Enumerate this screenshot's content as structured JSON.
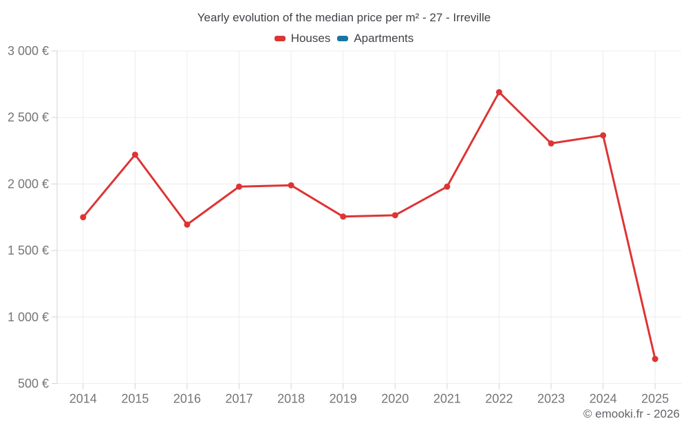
{
  "title": "Yearly evolution of the median price per m² - 27 - Irreville",
  "legend": {
    "items": [
      {
        "label": "Houses"
      },
      {
        "label": "Apartments"
      }
    ]
  },
  "footer": "© emooki.fr - 2026",
  "colors": {
    "grid": "#ececec",
    "axis": "#d2d2d2",
    "axis_text": "#757575",
    "title_text": "#3f4246",
    "footer_text": "#5f6368"
  },
  "chart_data": {
    "type": "line",
    "title": "Yearly evolution of the median price per m² - 27 - Irreville",
    "x": [
      "2014",
      "2015",
      "2016",
      "2017",
      "2018",
      "2019",
      "2020",
      "2021",
      "2022",
      "2023",
      "2024",
      "2025"
    ],
    "series": [
      {
        "name": "Houses",
        "color": "#dd3434",
        "values": [
          1750,
          2220,
          1695,
          1980,
          1990,
          1755,
          1765,
          1980,
          2690,
          2305,
          2365,
          685
        ]
      },
      {
        "name": "Apartments",
        "color": "#1a74a4",
        "values": []
      }
    ],
    "ylim": [
      500,
      3000
    ],
    "yticks": [
      {
        "value": 500,
        "label": "500 €"
      },
      {
        "value": 1000,
        "label": "1 000 €"
      },
      {
        "value": 1500,
        "label": "1 500 €"
      },
      {
        "value": 2000,
        "label": "2 000 €"
      },
      {
        "value": 2500,
        "label": "2 500 €"
      },
      {
        "value": 3000,
        "label": "3 000 €"
      }
    ],
    "xlabel": "",
    "ylabel": "",
    "grid": true,
    "legend_position": "top",
    "marker": "circle"
  }
}
